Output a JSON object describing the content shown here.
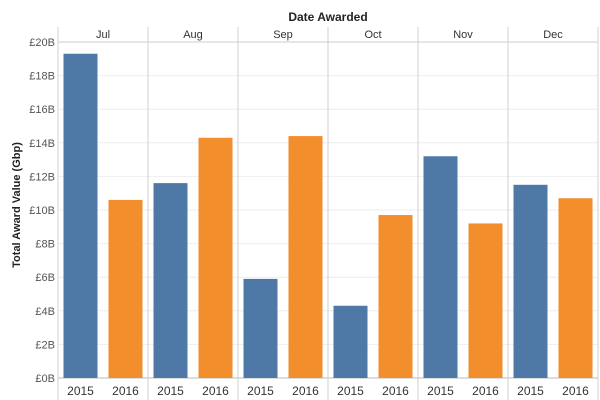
{
  "chart_data": {
    "type": "bar",
    "title": "Date Awarded",
    "ylabel": "Total Award Value (Gbp)",
    "ylim": [
      0,
      20
    ],
    "yticks": [
      "£0B",
      "£2B",
      "£4B",
      "£6B",
      "£8B",
      "£10B",
      "£12B",
      "£14B",
      "£16B",
      "£18B",
      "£20B"
    ],
    "categories": [
      "Jul",
      "Aug",
      "Sep",
      "Oct",
      "Nov",
      "Dec"
    ],
    "subcategories": [
      "2015",
      "2016"
    ],
    "series": [
      {
        "label": "2015",
        "color": "#4e79a7",
        "values": [
          19.3,
          11.6,
          5.9,
          4.3,
          13.2,
          11.5
        ]
      },
      {
        "label": "2016",
        "color": "#f28e2b",
        "values": [
          10.6,
          14.3,
          14.4,
          9.7,
          9.2,
          10.7
        ]
      }
    ],
    "grid": true
  }
}
